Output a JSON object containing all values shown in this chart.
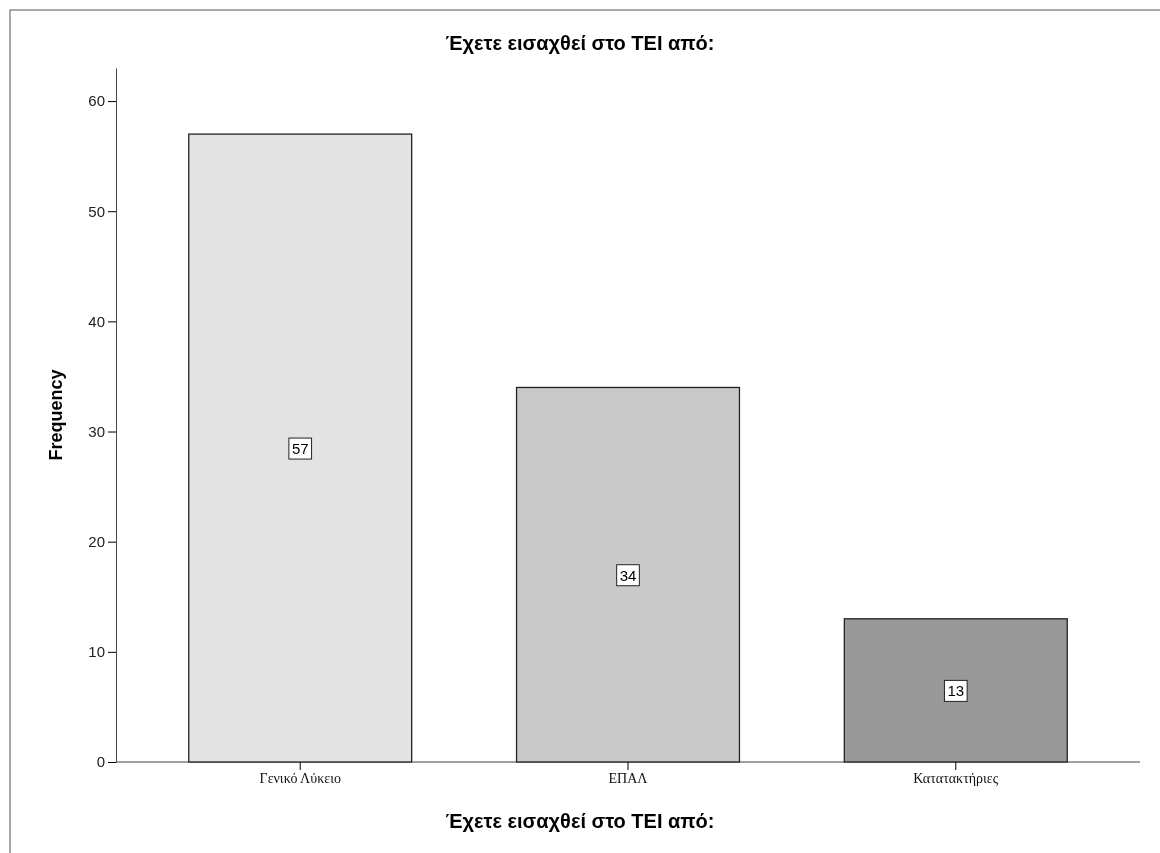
{
  "chart_data": {
    "type": "bar",
    "title": "Έχετε εισαχθεί στο ΤΕΙ από:",
    "xlabel": "Έχετε εισαχθεί στο ΤΕΙ από:",
    "ylabel": "Frequency",
    "categories": [
      "Γενικό Λύκειο",
      "ΕΠΑΛ",
      "Κατατακτήριες"
    ],
    "values": [
      57,
      34,
      13
    ],
    "colors": [
      "#e3e3e3",
      "#c9c9c9",
      "#999999"
    ],
    "ylim": [
      0,
      63
    ],
    "yticks": [
      0,
      10,
      20,
      30,
      40,
      50,
      60
    ],
    "grid": false,
    "data_labels": true
  }
}
